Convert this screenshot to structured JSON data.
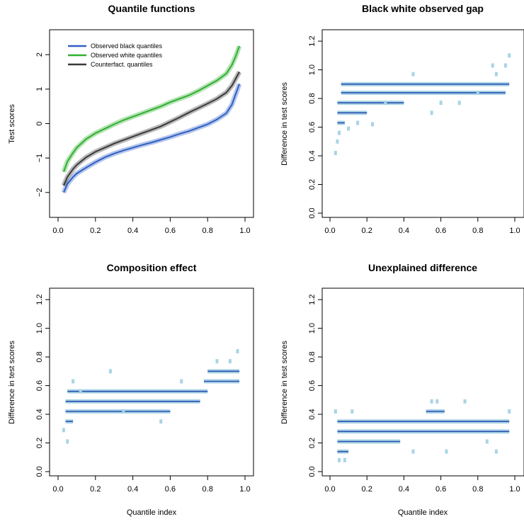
{
  "colors": {
    "black": "#2f5fc4",
    "white": "#2fb02f",
    "counterfactual": "#3a3a3a",
    "band": "#a9d4e6",
    "point": "#2b4fb0"
  },
  "chart_data": [
    {
      "type": "line",
      "title": "Quantile functions",
      "xlabel": "",
      "ylabel": "Test scores",
      "xlim": [
        0.0,
        1.0
      ],
      "ylim": [
        -2.6,
        2.6
      ],
      "x_ticks": [
        "0.0",
        "0.2",
        "0.4",
        "0.6",
        "0.8",
        "1.0"
      ],
      "y_ticks": [
        "−2",
        "−1",
        "0",
        "1",
        "2"
      ],
      "legend": "top-left",
      "series": [
        {
          "name": "Observed black quantiles",
          "color_key": "black",
          "x": [
            0.03,
            0.05,
            0.08,
            0.1,
            0.15,
            0.2,
            0.25,
            0.3,
            0.35,
            0.4,
            0.45,
            0.5,
            0.55,
            0.6,
            0.65,
            0.7,
            0.75,
            0.8,
            0.85,
            0.9,
            0.93,
            0.95,
            0.97
          ],
          "y": [
            -2.0,
            -1.75,
            -1.55,
            -1.45,
            -1.28,
            -1.12,
            -0.98,
            -0.87,
            -0.78,
            -0.7,
            -0.62,
            -0.55,
            -0.47,
            -0.39,
            -0.3,
            -0.22,
            -0.12,
            -0.02,
            0.12,
            0.3,
            0.55,
            0.85,
            1.15
          ]
        },
        {
          "name": "Observed white quantiles",
          "color_key": "white",
          "x": [
            0.03,
            0.05,
            0.08,
            0.1,
            0.15,
            0.2,
            0.25,
            0.3,
            0.35,
            0.4,
            0.45,
            0.5,
            0.55,
            0.6,
            0.65,
            0.7,
            0.75,
            0.8,
            0.85,
            0.9,
            0.93,
            0.95,
            0.97
          ],
          "y": [
            -1.4,
            -1.1,
            -0.85,
            -0.7,
            -0.45,
            -0.28,
            -0.15,
            -0.02,
            0.1,
            0.2,
            0.3,
            0.4,
            0.5,
            0.62,
            0.72,
            0.82,
            0.95,
            1.1,
            1.25,
            1.45,
            1.7,
            1.95,
            2.25
          ]
        },
        {
          "name": "Counterfact. quantiles",
          "color_key": "counterfactual",
          "x": [
            0.03,
            0.05,
            0.08,
            0.1,
            0.15,
            0.2,
            0.25,
            0.3,
            0.35,
            0.4,
            0.45,
            0.5,
            0.55,
            0.6,
            0.65,
            0.7,
            0.75,
            0.8,
            0.85,
            0.9,
            0.93,
            0.95,
            0.97
          ],
          "y": [
            -1.8,
            -1.55,
            -1.32,
            -1.2,
            -0.98,
            -0.82,
            -0.7,
            -0.58,
            -0.48,
            -0.38,
            -0.28,
            -0.18,
            -0.08,
            0.05,
            0.18,
            0.32,
            0.45,
            0.58,
            0.72,
            0.9,
            1.1,
            1.3,
            1.5
          ]
        }
      ]
    },
    {
      "type": "scatter",
      "title": "Black white observed gap",
      "xlabel": "",
      "ylabel": "Difference in test scores",
      "xlim": [
        0.0,
        1.0
      ],
      "ylim": [
        0.0,
        1.25
      ],
      "x_ticks": [
        "0.0",
        "0.2",
        "0.4",
        "0.6",
        "0.8",
        "1.0"
      ],
      "y_ticks": [
        "0.0",
        "0.2",
        "0.4",
        "0.6",
        "0.8",
        "1.0",
        "1.2"
      ],
      "segments": [
        [
          0.06,
          0.97,
          0.9
        ],
        [
          0.06,
          0.95,
          0.84
        ],
        [
          0.04,
          0.4,
          0.77
        ],
        [
          0.04,
          0.2,
          0.7
        ],
        [
          0.04,
          0.08,
          0.63
        ]
      ],
      "points": [
        [
          0.03,
          0.42
        ],
        [
          0.04,
          0.5
        ],
        [
          0.05,
          0.56
        ],
        [
          0.1,
          0.59
        ],
        [
          0.15,
          0.63
        ],
        [
          0.23,
          0.62
        ],
        [
          0.45,
          0.97
        ],
        [
          0.6,
          0.77
        ],
        [
          0.7,
          0.77
        ],
        [
          0.8,
          0.84
        ],
        [
          0.9,
          0.97
        ],
        [
          0.95,
          1.03
        ],
        [
          0.97,
          1.1
        ],
        [
          0.88,
          1.03
        ],
        [
          0.55,
          0.7
        ],
        [
          0.3,
          0.77
        ]
      ]
    },
    {
      "type": "scatter",
      "title": "Composition effect",
      "xlabel": "Quantile index",
      "ylabel": "Difference in test scores",
      "xlim": [
        0.0,
        1.0
      ],
      "ylim": [
        0.0,
        1.25
      ],
      "x_ticks": [
        "0.0",
        "0.2",
        "0.4",
        "0.6",
        "0.8",
        "1.0"
      ],
      "y_ticks": [
        "0.0",
        "0.2",
        "0.4",
        "0.6",
        "0.8",
        "1.0",
        "1.2"
      ],
      "segments": [
        [
          0.8,
          0.97,
          0.7
        ],
        [
          0.78,
          0.97,
          0.63
        ],
        [
          0.05,
          0.8,
          0.56
        ],
        [
          0.04,
          0.76,
          0.49
        ],
        [
          0.04,
          0.6,
          0.42
        ],
        [
          0.04,
          0.08,
          0.35
        ]
      ],
      "points": [
        [
          0.03,
          0.29
        ],
        [
          0.05,
          0.21
        ],
        [
          0.08,
          0.63
        ],
        [
          0.28,
          0.7
        ],
        [
          0.55,
          0.35
        ],
        [
          0.85,
          0.77
        ],
        [
          0.92,
          0.77
        ],
        [
          0.96,
          0.84
        ],
        [
          0.12,
          0.56
        ],
        [
          0.35,
          0.42
        ],
        [
          0.66,
          0.63
        ]
      ]
    },
    {
      "type": "scatter",
      "title": "Unexplained difference",
      "xlabel": "Quantile index",
      "ylabel": "Difference in test scores",
      "xlim": [
        0.0,
        1.0
      ],
      "ylim": [
        0.0,
        1.25
      ],
      "x_ticks": [
        "0.0",
        "0.2",
        "0.4",
        "0.6",
        "0.8",
        "1.0"
      ],
      "y_ticks": [
        "0.0",
        "0.2",
        "0.4",
        "0.6",
        "0.8",
        "1.0",
        "1.2"
      ],
      "segments": [
        [
          0.52,
          0.62,
          0.42
        ],
        [
          0.04,
          0.97,
          0.35
        ],
        [
          0.04,
          0.97,
          0.28
        ],
        [
          0.04,
          0.38,
          0.21
        ],
        [
          0.04,
          0.1,
          0.14
        ]
      ],
      "points": [
        [
          0.03,
          0.42
        ],
        [
          0.05,
          0.08
        ],
        [
          0.08,
          0.08
        ],
        [
          0.12,
          0.42
        ],
        [
          0.55,
          0.49
        ],
        [
          0.58,
          0.49
        ],
        [
          0.63,
          0.14
        ],
        [
          0.73,
          0.49
        ],
        [
          0.9,
          0.14
        ],
        [
          0.97,
          0.42
        ],
        [
          0.45,
          0.14
        ],
        [
          0.85,
          0.21
        ]
      ]
    }
  ]
}
